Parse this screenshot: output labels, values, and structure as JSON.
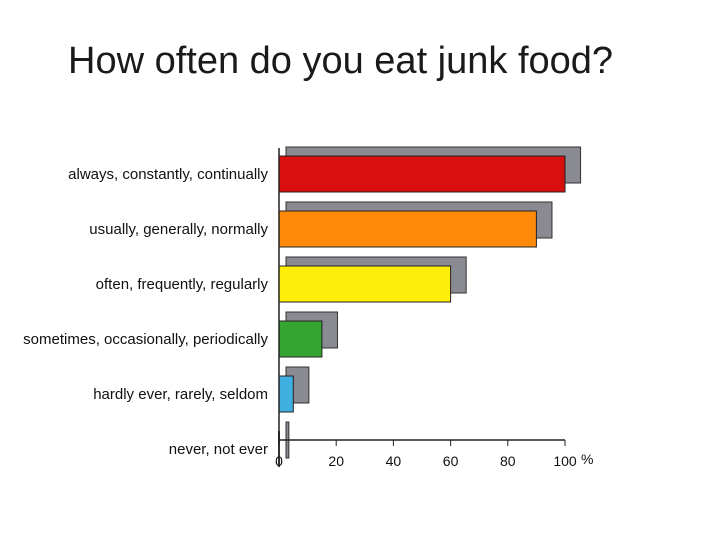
{
  "slide": {
    "title": "How often do you eat junk food?"
  },
  "chart_data": {
    "type": "bar",
    "orientation": "horizontal",
    "categories": [
      "always, constantly, continually",
      "usually, generally, normally",
      "often, frequently, regularly",
      "sometimes, occasionally, periodically",
      "hardly ever, rarely, seldom",
      "never, not ever"
    ],
    "series": [
      {
        "values": [
          100,
          90,
          60,
          15,
          5,
          0
        ]
      },
      {
        "values": [
          103,
          93,
          63,
          18,
          8,
          1
        ]
      }
    ],
    "bar_colors": [
      "#d90f0f",
      "#ff8a0a",
      "#ffee0a",
      "#35a532",
      "#3fb0e0",
      "#999999"
    ],
    "shadow_color": "#8a8a92",
    "xlim": [
      0,
      100
    ],
    "xticks": [
      0,
      20,
      40,
      60,
      80,
      100
    ],
    "tick_labels": [
      "0",
      "20",
      "40",
      "60",
      "80",
      "100"
    ],
    "xunit": "%",
    "grid": false,
    "legend": "none"
  }
}
